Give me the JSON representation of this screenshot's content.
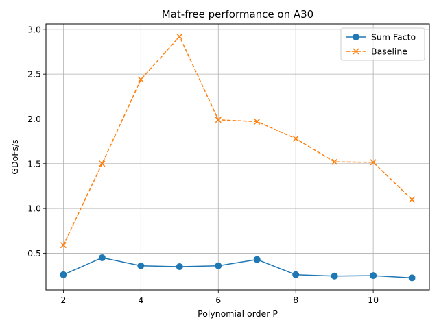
{
  "chart_data": {
    "type": "line",
    "title": "Mat-free performance on A30",
    "xlabel": "Polynomial order P",
    "ylabel": "GDoFs/s",
    "x": [
      2,
      3,
      4,
      5,
      6,
      7,
      8,
      9,
      10,
      11
    ],
    "xlim": [
      1.55,
      11.45
    ],
    "ylim": [
      0.09,
      3.06
    ],
    "xticks": [
      2,
      4,
      6,
      8,
      10
    ],
    "yticks": [
      0.5,
      1.0,
      1.5,
      2.0,
      2.5,
      3.0
    ],
    "ytick_labels": [
      "0.5",
      "1.0",
      "1.5",
      "2.0",
      "2.5",
      "3.0"
    ],
    "grid": true,
    "legend_position": "top-right",
    "series": [
      {
        "name": "Sum Facto",
        "values": [
          0.26,
          0.45,
          0.36,
          0.35,
          0.36,
          0.43,
          0.26,
          0.245,
          0.25,
          0.225
        ],
        "color": "#1f77b4",
        "linestyle": "solid",
        "marker": "circle"
      },
      {
        "name": "Baseline",
        "values": [
          0.59,
          1.5,
          2.44,
          2.92,
          1.99,
          1.97,
          1.78,
          1.52,
          1.515,
          1.1
        ],
        "color": "#ff7f0e",
        "linestyle": "dashed",
        "marker": "x"
      }
    ]
  }
}
